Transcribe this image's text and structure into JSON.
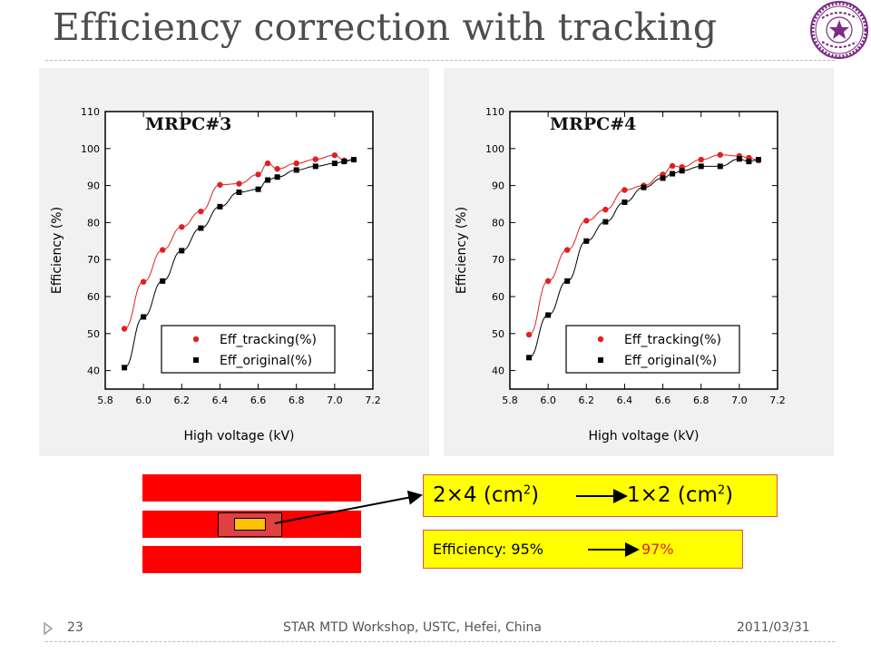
{
  "slide": {
    "title": "Efficiency correction with tracking",
    "footer": {
      "page_number": "23",
      "event": "STAR MTD Workshop, USTC, Hefei, China",
      "date": "2011/03/31"
    }
  },
  "logo": {
    "icon": "university-seal-icon",
    "color": "#7b2c83"
  },
  "chart_data": [
    {
      "type": "scatter",
      "title": "MRPC#3",
      "xlabel": "High voltage (kV)",
      "ylabel": "Efficiency (%)",
      "xlim": [
        5.8,
        7.2
      ],
      "ylim": [
        35,
        110
      ],
      "xticks": [
        "5.8",
        "6.0",
        "6.2",
        "6.4",
        "6.6",
        "6.8",
        "7.0",
        "7.2"
      ],
      "yticks": [
        "40",
        "50",
        "60",
        "70",
        "80",
        "90",
        "100",
        "110"
      ],
      "legend": "lower-right",
      "series": [
        {
          "name": "Eff_tracking(%)",
          "color": "#e02020",
          "marker": "circle",
          "x": [
            5.9,
            6.0,
            6.1,
            6.2,
            6.3,
            6.4,
            6.5,
            6.6,
            6.65,
            6.7,
            6.8,
            6.9,
            7.0,
            7.05,
            7.1
          ],
          "y": [
            51.3,
            64.0,
            72.6,
            78.8,
            83.0,
            90.2,
            90.5,
            93.0,
            96.0,
            94.5,
            96.0,
            97.1,
            98.2,
            96.8,
            97.0
          ]
        },
        {
          "name": "Eff_original(%)",
          "color": "#000000",
          "marker": "square",
          "x": [
            5.9,
            6.0,
            6.1,
            6.2,
            6.3,
            6.4,
            6.5,
            6.6,
            6.65,
            6.7,
            6.8,
            6.9,
            7.0,
            7.05,
            7.1
          ],
          "y": [
            40.8,
            54.5,
            64.2,
            72.4,
            78.5,
            84.3,
            88.2,
            89.0,
            91.5,
            92.3,
            94.2,
            95.2,
            96.0,
            96.5,
            97.0
          ]
        }
      ]
    },
    {
      "type": "scatter",
      "title": "MRPC#4",
      "xlabel": "High voltage (kV)",
      "ylabel": "Efficiency (%)",
      "xlim": [
        5.8,
        7.2
      ],
      "ylim": [
        35,
        110
      ],
      "xticks": [
        "5.8",
        "6.0",
        "6.2",
        "6.4",
        "6.6",
        "6.8",
        "7.0",
        "7.2"
      ],
      "yticks": [
        "40",
        "50",
        "60",
        "70",
        "80",
        "90",
        "100",
        "110"
      ],
      "legend": "lower-right",
      "series": [
        {
          "name": "Eff_tracking(%)",
          "color": "#e02020",
          "marker": "circle",
          "x": [
            5.9,
            6.0,
            6.1,
            6.2,
            6.3,
            6.4,
            6.5,
            6.6,
            6.65,
            6.7,
            6.8,
            6.9,
            7.0,
            7.05,
            7.1
          ],
          "y": [
            49.7,
            64.2,
            72.6,
            80.5,
            83.5,
            88.8,
            90.0,
            93.0,
            95.3,
            95.0,
            97.0,
            98.3,
            98.0,
            97.5,
            96.8
          ]
        },
        {
          "name": "Eff_original(%)",
          "color": "#000000",
          "marker": "square",
          "x": [
            5.9,
            6.0,
            6.1,
            6.2,
            6.3,
            6.4,
            6.5,
            6.6,
            6.65,
            6.7,
            6.8,
            6.9,
            7.0,
            7.05,
            7.1
          ],
          "y": [
            43.5,
            55.0,
            64.2,
            75.0,
            80.2,
            85.5,
            89.5,
            92.0,
            93.2,
            94.0,
            95.2,
            95.2,
            97.2,
            96.5,
            97.0
          ]
        }
      ]
    }
  ],
  "readout_size": {
    "before": "2×4 (cm",
    "before_sup": "2",
    "after": "1×2 (cm",
    "after_sup": "2",
    "close": ")"
  },
  "readout_efficiency": {
    "label": "Efficiency: 95%",
    "new_value": "97%",
    "new_value_color": "#e0202a"
  },
  "colors": {
    "strip": "#ff0000",
    "pad": "#ffc000",
    "box": "#ffff00"
  }
}
